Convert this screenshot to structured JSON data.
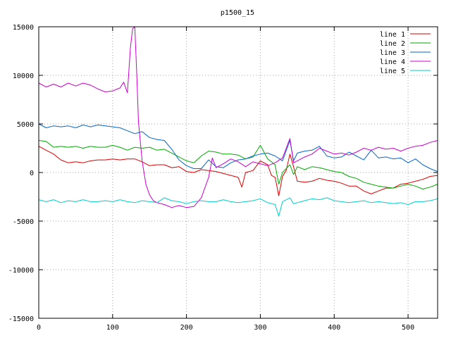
{
  "chart_data": {
    "type": "line",
    "title": "p1500_15",
    "xlabel": "",
    "ylabel": "",
    "xlim": [
      0,
      540
    ],
    "ylim": [
      -15000,
      15000
    ],
    "xticks": [
      0,
      100,
      200,
      300,
      400,
      500
    ],
    "yticks": [
      -15000,
      -10000,
      -5000,
      0,
      5000,
      10000,
      15000
    ],
    "grid": true,
    "legend_position": "top-right",
    "series": [
      {
        "name": "line 1",
        "color": "#dd0000",
        "points": [
          [
            0,
            2700
          ],
          [
            10,
            2300
          ],
          [
            20,
            1900
          ],
          [
            30,
            1300
          ],
          [
            40,
            1000
          ],
          [
            50,
            1100
          ],
          [
            60,
            1000
          ],
          [
            70,
            1200
          ],
          [
            80,
            1300
          ],
          [
            90,
            1300
          ],
          [
            100,
            1400
          ],
          [
            110,
            1300
          ],
          [
            120,
            1400
          ],
          [
            130,
            1400
          ],
          [
            140,
            1100
          ],
          [
            150,
            700
          ],
          [
            160,
            800
          ],
          [
            170,
            800
          ],
          [
            180,
            500
          ],
          [
            190,
            600
          ],
          [
            200,
            100
          ],
          [
            210,
            0
          ],
          [
            220,
            300
          ],
          [
            230,
            200
          ],
          [
            240,
            100
          ],
          [
            250,
            -100
          ],
          [
            260,
            -300
          ],
          [
            270,
            -500
          ],
          [
            275,
            -1500
          ],
          [
            280,
            0
          ],
          [
            290,
            200
          ],
          [
            300,
            1200
          ],
          [
            310,
            800
          ],
          [
            315,
            -300
          ],
          [
            320,
            -500
          ],
          [
            325,
            -2400
          ],
          [
            330,
            -400
          ],
          [
            335,
            200
          ],
          [
            340,
            1900
          ],
          [
            345,
            600
          ],
          [
            350,
            -900
          ],
          [
            360,
            -1000
          ],
          [
            370,
            -900
          ],
          [
            380,
            -600
          ],
          [
            390,
            -800
          ],
          [
            400,
            -900
          ],
          [
            410,
            -1100
          ],
          [
            420,
            -1400
          ],
          [
            430,
            -1400
          ],
          [
            440,
            -1900
          ],
          [
            450,
            -2200
          ],
          [
            460,
            -1900
          ],
          [
            470,
            -1600
          ],
          [
            480,
            -1600
          ],
          [
            490,
            -1200
          ],
          [
            500,
            -1100
          ],
          [
            510,
            -900
          ],
          [
            520,
            -700
          ],
          [
            530,
            -400
          ],
          [
            540,
            -300
          ]
        ]
      },
      {
        "name": "line 2",
        "color": "#00aa00",
        "points": [
          [
            0,
            3300
          ],
          [
            10,
            3200
          ],
          [
            20,
            2600
          ],
          [
            30,
            2700
          ],
          [
            40,
            2600
          ],
          [
            50,
            2700
          ],
          [
            60,
            2500
          ],
          [
            70,
            2700
          ],
          [
            80,
            2600
          ],
          [
            90,
            2600
          ],
          [
            100,
            2800
          ],
          [
            110,
            2600
          ],
          [
            120,
            2300
          ],
          [
            130,
            2600
          ],
          [
            140,
            2500
          ],
          [
            150,
            2600
          ],
          [
            160,
            2300
          ],
          [
            170,
            2400
          ],
          [
            180,
            2000
          ],
          [
            190,
            1600
          ],
          [
            200,
            1200
          ],
          [
            210,
            1000
          ],
          [
            220,
            1700
          ],
          [
            230,
            2200
          ],
          [
            240,
            2100
          ],
          [
            250,
            1900
          ],
          [
            260,
            1900
          ],
          [
            270,
            1800
          ],
          [
            280,
            1400
          ],
          [
            290,
            1600
          ],
          [
            300,
            2800
          ],
          [
            310,
            1400
          ],
          [
            320,
            800
          ],
          [
            325,
            -1200
          ],
          [
            330,
            0
          ],
          [
            340,
            800
          ],
          [
            345,
            -200
          ],
          [
            350,
            600
          ],
          [
            360,
            300
          ],
          [
            370,
            600
          ],
          [
            380,
            500
          ],
          [
            390,
            300
          ],
          [
            400,
            100
          ],
          [
            410,
            0
          ],
          [
            420,
            -400
          ],
          [
            430,
            -600
          ],
          [
            440,
            -1000
          ],
          [
            450,
            -1200
          ],
          [
            460,
            -1400
          ],
          [
            470,
            -1500
          ],
          [
            480,
            -1600
          ],
          [
            490,
            -1400
          ],
          [
            500,
            -1200
          ],
          [
            510,
            -1400
          ],
          [
            520,
            -1700
          ],
          [
            530,
            -1500
          ],
          [
            540,
            -1200
          ]
        ]
      },
      {
        "name": "line 3",
        "color": "#0066cc",
        "points": [
          [
            0,
            5000
          ],
          [
            10,
            4600
          ],
          [
            20,
            4800
          ],
          [
            30,
            4700
          ],
          [
            40,
            4800
          ],
          [
            50,
            4600
          ],
          [
            60,
            4900
          ],
          [
            70,
            4700
          ],
          [
            80,
            4900
          ],
          [
            90,
            4800
          ],
          [
            100,
            4700
          ],
          [
            110,
            4600
          ],
          [
            120,
            4300
          ],
          [
            130,
            4000
          ],
          [
            140,
            4200
          ],
          [
            150,
            3600
          ],
          [
            160,
            3400
          ],
          [
            170,
            3300
          ],
          [
            180,
            2400
          ],
          [
            190,
            1300
          ],
          [
            200,
            700
          ],
          [
            210,
            400
          ],
          [
            220,
            400
          ],
          [
            230,
            1300
          ],
          [
            240,
            600
          ],
          [
            250,
            500
          ],
          [
            260,
            1000
          ],
          [
            270,
            1300
          ],
          [
            280,
            1400
          ],
          [
            290,
            1700
          ],
          [
            300,
            1900
          ],
          [
            310,
            2000
          ],
          [
            320,
            1700
          ],
          [
            330,
            1200
          ],
          [
            340,
            3300
          ],
          [
            345,
            1200
          ],
          [
            350,
            2000
          ],
          [
            360,
            2200
          ],
          [
            370,
            2300
          ],
          [
            380,
            2700
          ],
          [
            390,
            1700
          ],
          [
            400,
            1500
          ],
          [
            410,
            1600
          ],
          [
            420,
            2100
          ],
          [
            430,
            1700
          ],
          [
            440,
            1300
          ],
          [
            450,
            2300
          ],
          [
            460,
            1500
          ],
          [
            470,
            1600
          ],
          [
            480,
            1400
          ],
          [
            490,
            1500
          ],
          [
            500,
            1000
          ],
          [
            510,
            1400
          ],
          [
            520,
            800
          ],
          [
            530,
            400
          ],
          [
            540,
            100
          ]
        ]
      },
      {
        "name": "line 4",
        "color": "#cc00cc",
        "points": [
          [
            0,
            9200
          ],
          [
            10,
            8800
          ],
          [
            20,
            9100
          ],
          [
            30,
            8800
          ],
          [
            40,
            9200
          ],
          [
            50,
            8900
          ],
          [
            60,
            9200
          ],
          [
            70,
            9000
          ],
          [
            80,
            8600
          ],
          [
            90,
            8300
          ],
          [
            100,
            8400
          ],
          [
            110,
            8700
          ],
          [
            115,
            9300
          ],
          [
            120,
            8200
          ],
          [
            124,
            12800
          ],
          [
            127,
            14800
          ],
          [
            130,
            15000
          ],
          [
            133,
            9500
          ],
          [
            135,
            5200
          ],
          [
            140,
            1200
          ],
          [
            145,
            -1200
          ],
          [
            150,
            -2300
          ],
          [
            155,
            -2900
          ],
          [
            160,
            -3100
          ],
          [
            170,
            -3300
          ],
          [
            180,
            -3600
          ],
          [
            190,
            -3400
          ],
          [
            200,
            -3600
          ],
          [
            210,
            -3500
          ],
          [
            220,
            -2600
          ],
          [
            230,
            -500
          ],
          [
            235,
            1500
          ],
          [
            240,
            500
          ],
          [
            250,
            900
          ],
          [
            260,
            1400
          ],
          [
            270,
            1100
          ],
          [
            280,
            600
          ],
          [
            290,
            1100
          ],
          [
            300,
            900
          ],
          [
            310,
            700
          ],
          [
            320,
            1000
          ],
          [
            330,
            1500
          ],
          [
            340,
            3500
          ],
          [
            345,
            1000
          ],
          [
            350,
            1200
          ],
          [
            360,
            1600
          ],
          [
            370,
            1900
          ],
          [
            380,
            2500
          ],
          [
            390,
            2200
          ],
          [
            400,
            1900
          ],
          [
            410,
            2000
          ],
          [
            420,
            1800
          ],
          [
            430,
            2100
          ],
          [
            440,
            2500
          ],
          [
            450,
            2300
          ],
          [
            460,
            2600
          ],
          [
            470,
            2400
          ],
          [
            480,
            2500
          ],
          [
            490,
            2200
          ],
          [
            500,
            2500
          ],
          [
            510,
            2700
          ],
          [
            520,
            2800
          ],
          [
            530,
            3100
          ],
          [
            540,
            3300
          ]
        ]
      },
      {
        "name": "line 5",
        "color": "#00cccc",
        "points": [
          [
            0,
            -2800
          ],
          [
            10,
            -3000
          ],
          [
            20,
            -2800
          ],
          [
            30,
            -3100
          ],
          [
            40,
            -2900
          ],
          [
            50,
            -3000
          ],
          [
            60,
            -2800
          ],
          [
            70,
            -3000
          ],
          [
            80,
            -3000
          ],
          [
            90,
            -2900
          ],
          [
            100,
            -3000
          ],
          [
            110,
            -2800
          ],
          [
            120,
            -3000
          ],
          [
            130,
            -3100
          ],
          [
            140,
            -2900
          ],
          [
            150,
            -3000
          ],
          [
            160,
            -3100
          ],
          [
            170,
            -2600
          ],
          [
            180,
            -2900
          ],
          [
            190,
            -3000
          ],
          [
            200,
            -3200
          ],
          [
            210,
            -3000
          ],
          [
            220,
            -2900
          ],
          [
            230,
            -3000
          ],
          [
            240,
            -3000
          ],
          [
            250,
            -2800
          ],
          [
            260,
            -3000
          ],
          [
            270,
            -3100
          ],
          [
            280,
            -3000
          ],
          [
            290,
            -2900
          ],
          [
            300,
            -2700
          ],
          [
            310,
            -3100
          ],
          [
            320,
            -3300
          ],
          [
            325,
            -4500
          ],
          [
            330,
            -3000
          ],
          [
            340,
            -2600
          ],
          [
            345,
            -3200
          ],
          [
            350,
            -3100
          ],
          [
            360,
            -2900
          ],
          [
            370,
            -2700
          ],
          [
            380,
            -2800
          ],
          [
            390,
            -2600
          ],
          [
            400,
            -2900
          ],
          [
            410,
            -3000
          ],
          [
            420,
            -3100
          ],
          [
            430,
            -3000
          ],
          [
            440,
            -2900
          ],
          [
            450,
            -3100
          ],
          [
            460,
            -3000
          ],
          [
            470,
            -3100
          ],
          [
            480,
            -3200
          ],
          [
            490,
            -3100
          ],
          [
            500,
            -3300
          ],
          [
            510,
            -3000
          ],
          [
            520,
            -3000
          ],
          [
            530,
            -2900
          ],
          [
            540,
            -2700
          ]
        ]
      }
    ]
  }
}
